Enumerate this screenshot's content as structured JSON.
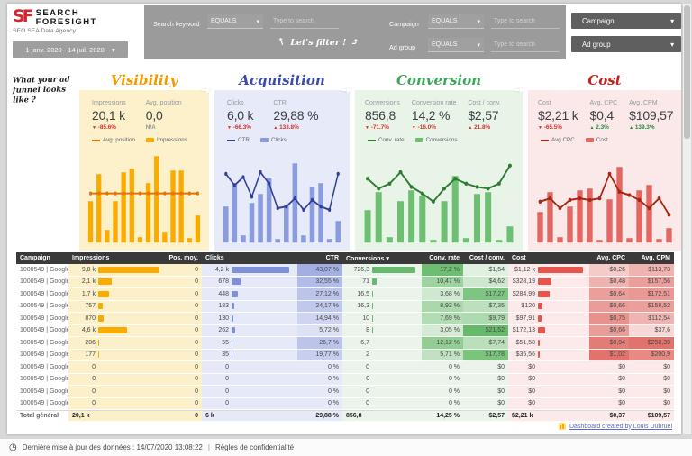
{
  "icons": {
    "caret": "▾",
    "sort": "▾",
    "up": "▲",
    "down": "▼",
    "flow_arrow": "➜",
    "arrow_up": "↑",
    "arrow_curve": "⤴",
    "clock": "◷"
  },
  "header": {
    "logo": {
      "mark": "SF",
      "name_line1": "SEARCH",
      "name_line2": "FORESIGHT",
      "tagline": "SEO SEA Data Agency"
    },
    "date_range_label": "1 janv. 2020 - 14 juil. 2020",
    "filter_annotation": "Let's filter !",
    "filters": [
      {
        "label": "Search keyword",
        "operator": "EQUALS",
        "placeholder": "Type to search"
      },
      {
        "label": "Campaign",
        "operator": "EQUALS",
        "placeholder": "Type to search"
      },
      {
        "label": "Ad group",
        "operator": "EQUALS",
        "placeholder": "Type to search"
      }
    ],
    "selector_buttons": [
      {
        "label": "Campaign"
      },
      {
        "label": "Ad group"
      }
    ]
  },
  "annotation_left": "What your ad funnel looks like ?",
  "sections": [
    {
      "id": "visibility",
      "title": "Visibility",
      "colors": {
        "title": "#f29900",
        "panel": "#fcf1cb",
        "bar": "#f9ab00",
        "line": "#e37400"
      },
      "kpis": [
        {
          "label": "Impressions",
          "value": "20,1 k",
          "delta": "-85.6%",
          "delta_dir": "down",
          "delta_color": "#d93025"
        },
        {
          "label": "Avg. position",
          "value": "0,0",
          "delta": "N/A",
          "delta_dir": "none",
          "delta_color": "#8f9499"
        }
      ],
      "legend": [
        {
          "type": "line",
          "label": "Avg. position"
        },
        {
          "type": "bar",
          "label": "Impressions"
        }
      ],
      "chart": {
        "type": "bar+line",
        "bars": [
          46,
          76,
          14,
          46,
          78,
          82,
          6,
          66,
          96,
          12,
          80,
          80,
          5,
          30
        ],
        "line": [
          50,
          50,
          50,
          50,
          50,
          50,
          50,
          50,
          50,
          50,
          50,
          50,
          50,
          50
        ]
      }
    },
    {
      "id": "acquisition",
      "title": "Acquisition",
      "colors": {
        "title": "#3b4ba8",
        "panel": "#e7eaf9",
        "bar": "#8b9cde",
        "line": "#30409b"
      },
      "kpis": [
        {
          "label": "Clicks",
          "value": "6,0 k",
          "delta": "-66.3%",
          "delta_dir": "down",
          "delta_color": "#d93025"
        },
        {
          "label": "CTR",
          "value": "29,88 %",
          "delta": "133.8%",
          "delta_dir": "up",
          "delta_color": "#d93025"
        }
      ],
      "legend": [
        {
          "type": "line",
          "label": "CTR"
        },
        {
          "type": "bar",
          "label": "Clicks"
        }
      ],
      "chart": {
        "type": "bar+line",
        "bars": [
          40,
          66,
          8,
          44,
          54,
          72,
          4,
          42,
          88,
          8,
          62,
          66,
          4,
          24
        ],
        "line": [
          74,
          60,
          70,
          46,
          76,
          62,
          32,
          34,
          44,
          30,
          42,
          34,
          30,
          74
        ]
      }
    },
    {
      "id": "conversion",
      "title": "Conversion",
      "colors": {
        "title": "#3fa45b",
        "panel": "#e9f4e9",
        "bar": "#6fbf73",
        "line": "#2e7d32"
      },
      "kpis": [
        {
          "label": "Conversions",
          "value": "856,8",
          "delta": "-71.7%",
          "delta_dir": "down",
          "delta_color": "#d93025"
        },
        {
          "label": "Conversion rate",
          "value": "14,2 %",
          "delta": "-16.0%",
          "delta_dir": "down",
          "delta_color": "#d93025"
        },
        {
          "label": "Cost / conv.",
          "value": "$2,57",
          "delta": "21.8%",
          "delta_dir": "up",
          "delta_color": "#d93025"
        }
      ],
      "legend": [
        {
          "type": "line",
          "label": "Conv. rate"
        },
        {
          "type": "bar",
          "label": "Conversions"
        }
      ],
      "chart": {
        "type": "bar+line",
        "bars": [
          36,
          56,
          6,
          46,
          58,
          52,
          3,
          46,
          74,
          5,
          54,
          56,
          3,
          18
        ],
        "line": [
          68,
          56,
          62,
          76,
          58,
          50,
          40,
          56,
          68,
          62,
          58,
          56,
          62,
          84
        ]
      }
    },
    {
      "id": "cost",
      "title": "Cost",
      "colors": {
        "title": "#c5221f",
        "panel": "#fbe9e9",
        "bar": "#e36862",
        "line": "#a52714"
      },
      "kpis": [
        {
          "label": "Cost",
          "value": "$2,21 k",
          "delta": "-65.5%",
          "delta_dir": "down",
          "delta_color": "#d93025"
        },
        {
          "label": "Avg. CPC",
          "value": "$0,4",
          "delta": "2.3%",
          "delta_dir": "up",
          "delta_color": "#1e8e3e"
        },
        {
          "label": "Avg. CPM",
          "value": "$109,57",
          "delta": "139.3%",
          "delta_dir": "up",
          "delta_color": "#1e8e3e"
        }
      ],
      "legend": [
        {
          "type": "line",
          "label": "Avg CPC"
        },
        {
          "type": "bar",
          "label": "Cost"
        }
      ],
      "chart": {
        "type": "bar+line",
        "bars": [
          34,
          56,
          6,
          40,
          58,
          60,
          3,
          48,
          84,
          5,
          58,
          64,
          4,
          16
        ],
        "line": [
          40,
          44,
          32,
          42,
          44,
          42,
          44,
          74,
          52,
          48,
          42,
          32,
          44,
          24
        ]
      }
    }
  ],
  "table": {
    "colors": {
      "impressions_bar": "#f9ab00",
      "clicks_bar": "#7d90d8",
      "conversions_bar": "#67b96b",
      "cost_bar": "#e8544c",
      "ctr_heat": "#9fabe2",
      "rate_heat": "#66bb6a",
      "costconv_heat": "#5db761",
      "cpc_heat": "#e06c65",
      "cpm_heat": "#e06c65",
      "band_yellow": "#fbf0c9",
      "band_blue": "#e6e9f7",
      "band_green": "#eaf4ea",
      "band_red": "#fbeae9",
      "band_white": "#ffffff",
      "header_bg": "#3a3a3a"
    },
    "columns": [
      {
        "label": "Campaign"
      },
      {
        "label": "Impressions"
      },
      {
        "label": "Pos. moy."
      },
      {
        "label": "Clicks"
      },
      {
        "label": "CTR"
      },
      {
        "label": "Conversions",
        "sorted": true
      },
      {
        "label": "Conv. rate"
      },
      {
        "label": "Cost / conv."
      },
      {
        "label": "Cost"
      },
      {
        "label": "Avg. CPC"
      },
      {
        "label": "Avg. CPM"
      }
    ],
    "rows": [
      {
        "campaign": "1000549 | Google Anal...",
        "impressions": "9,8 k",
        "impressions_v": 9800,
        "pos_moy": "0",
        "clicks": "4,2 k",
        "clicks_v": 4200,
        "ctr": "43,07 %",
        "ctr_v": 43.07,
        "conversions": "726,3",
        "conversions_v": 726.3,
        "conv_rate": "17,2 %",
        "conv_rate_v": 17.2,
        "cost_conv": "$1,54",
        "cost_conv_v": 1.54,
        "cost": "$1,12 k",
        "cost_v": 1120,
        "cpc": "$0,26",
        "cpc_v": 0.26,
        "cpm": "$113,73",
        "cpm_v": 113.73
      },
      {
        "campaign": "1000549 | Google Anal...",
        "impressions": "2,1 k",
        "impressions_v": 2100,
        "pos_moy": "0",
        "clicks": "678",
        "clicks_v": 678,
        "ctr": "32,55 %",
        "ctr_v": 32.55,
        "conversions": "71",
        "conversions_v": 71,
        "conv_rate": "10,47 %",
        "conv_rate_v": 10.47,
        "cost_conv": "$4,62",
        "cost_conv_v": 4.62,
        "cost": "$328,19",
        "cost_v": 328.19,
        "cpc": "$0,48",
        "cpc_v": 0.48,
        "cpm": "$157,56",
        "cpm_v": 157.56
      },
      {
        "campaign": "1000549 | Google Anal...",
        "impressions": "1,7 k",
        "impressions_v": 1700,
        "pos_moy": "0",
        "clicks": "448",
        "clicks_v": 448,
        "ctr": "27,12 %",
        "ctr_v": 27.12,
        "conversions": "16,5",
        "conversions_v": 16.5,
        "conv_rate": "3,68 %",
        "conv_rate_v": 3.68,
        "cost_conv": "$17,27",
        "cost_conv_v": 17.27,
        "cost": "$284,99",
        "cost_v": 284.99,
        "cpc": "$0,64",
        "cpc_v": 0.64,
        "cpm": "$172,51",
        "cpm_v": 172.51
      },
      {
        "campaign": "1000549 | Google Anal...",
        "impressions": "757",
        "impressions_v": 757,
        "pos_moy": "0",
        "clicks": "183",
        "clicks_v": 183,
        "ctr": "24,17 %",
        "ctr_v": 24.17,
        "conversions": "16,3",
        "conversions_v": 16.3,
        "conv_rate": "8,93 %",
        "conv_rate_v": 8.93,
        "cost_conv": "$7,35",
        "cost_conv_v": 7.35,
        "cost": "$120",
        "cost_v": 120,
        "cpc": "$0,66",
        "cpc_v": 0.66,
        "cpm": "$158,52",
        "cpm_v": 158.52
      },
      {
        "campaign": "1000549 | Google Anal...",
        "impressions": "870",
        "impressions_v": 870,
        "pos_moy": "0",
        "clicks": "130",
        "clicks_v": 130,
        "ctr": "14,94 %",
        "ctr_v": 14.94,
        "conversions": "10",
        "conversions_v": 10,
        "conv_rate": "7,69 %",
        "conv_rate_v": 7.69,
        "cost_conv": "$9,79",
        "cost_conv_v": 9.79,
        "cost": "$97,91",
        "cost_v": 97.91,
        "cpc": "$0,75",
        "cpc_v": 0.75,
        "cpm": "$112,54",
        "cpm_v": 112.54
      },
      {
        "campaign": "1000549 | Google Anal...",
        "impressions": "4,6 k",
        "impressions_v": 4600,
        "pos_moy": "0",
        "clicks": "262",
        "clicks_v": 262,
        "ctr": "5,72 %",
        "ctr_v": 5.72,
        "conversions": "8",
        "conversions_v": 8,
        "conv_rate": "3,05 %",
        "conv_rate_v": 3.05,
        "cost_conv": "$21,52",
        "cost_conv_v": 21.52,
        "cost": "$172,13",
        "cost_v": 172.13,
        "cpc": "$0,66",
        "cpc_v": 0.66,
        "cpm": "$37,6",
        "cpm_v": 37.6
      },
      {
        "campaign": "1000549 | Google Anal...",
        "impressions": "206",
        "impressions_v": 206,
        "pos_moy": "0",
        "clicks": "55",
        "clicks_v": 55,
        "ctr": "26,7 %",
        "ctr_v": 26.7,
        "conversions": "6,7",
        "conversions_v": 6.7,
        "conv_rate": "12,12 %",
        "conv_rate_v": 12.12,
        "cost_conv": "$7,74",
        "cost_conv_v": 7.74,
        "cost": "$51,58",
        "cost_v": 51.58,
        "cpc": "$0,94",
        "cpc_v": 0.94,
        "cpm": "$250,39",
        "cpm_v": 250.39
      },
      {
        "campaign": "1000549 | Google Anal...",
        "impressions": "177",
        "impressions_v": 177,
        "pos_moy": "0",
        "clicks": "35",
        "clicks_v": 35,
        "ctr": "19,77 %",
        "ctr_v": 19.77,
        "conversions": "2",
        "conversions_v": 2,
        "conv_rate": "5,71 %",
        "conv_rate_v": 5.71,
        "cost_conv": "$17,78",
        "cost_conv_v": 17.78,
        "cost": "$35,56",
        "cost_v": 35.56,
        "cpc": "$1,02",
        "cpc_v": 1.02,
        "cpm": "$200,9",
        "cpm_v": 200.9
      },
      {
        "campaign": "1000549 | Google Anal...",
        "impressions": "0",
        "impressions_v": 0,
        "pos_moy": "0",
        "clicks": "0",
        "clicks_v": 0,
        "ctr": "0 %",
        "ctr_v": 0,
        "conversions": "0",
        "conversions_v": 0,
        "conv_rate": "0 %",
        "conv_rate_v": 0,
        "cost_conv": "$0",
        "cost_conv_v": 0,
        "cost": "$0",
        "cost_v": 0,
        "cpc": "$0",
        "cpc_v": 0,
        "cpm": "$0",
        "cpm_v": 0
      },
      {
        "campaign": "1000549 | Google Anal...",
        "impressions": "0",
        "impressions_v": 0,
        "pos_moy": "0",
        "clicks": "0",
        "clicks_v": 0,
        "ctr": "0 %",
        "ctr_v": 0,
        "conversions": "0",
        "conversions_v": 0,
        "conv_rate": "0 %",
        "conv_rate_v": 0,
        "cost_conv": "$0",
        "cost_conv_v": 0,
        "cost": "$0",
        "cost_v": 0,
        "cpc": "$0",
        "cpc_v": 0,
        "cpm": "$0",
        "cpm_v": 0
      },
      {
        "campaign": "1000549 | Google Anal...",
        "impressions": "0",
        "impressions_v": 0,
        "pos_moy": "0",
        "clicks": "0",
        "clicks_v": 0,
        "ctr": "0 %",
        "ctr_v": 0,
        "conversions": "0",
        "conversions_v": 0,
        "conv_rate": "0 %",
        "conv_rate_v": 0,
        "cost_conv": "$0",
        "cost_conv_v": 0,
        "cost": "$0",
        "cost_v": 0,
        "cpc": "$0",
        "cpc_v": 0,
        "cpm": "$0",
        "cpm_v": 0
      },
      {
        "campaign": "1000549 | Google Anal...",
        "impressions": "0",
        "impressions_v": 0,
        "pos_moy": "0",
        "clicks": "0",
        "clicks_v": 0,
        "ctr": "0 %",
        "ctr_v": 0,
        "conversions": "0",
        "conversions_v": 0,
        "conv_rate": "0 %",
        "conv_rate_v": 0,
        "cost_conv": "$0",
        "cost_conv_v": 0,
        "cost": "$0",
        "cost_v": 0,
        "cpc": "$0",
        "cpc_v": 0,
        "cpm": "$0",
        "cpm_v": 0
      }
    ],
    "total": {
      "campaign": "Total général",
      "impressions": "20,1 k",
      "pos_moy": "0",
      "clicks": "6 k",
      "ctr": "29,88 %",
      "conversions": "856,8",
      "conv_rate": "14,25 %",
      "cost_conv": "$2,57",
      "cost": "$2,21 k",
      "cpc": "$0,37",
      "cpm": "$109,57"
    }
  },
  "credit_link_label": "Dashboard created by Louis Dubruel",
  "status_bar": {
    "updated_text": "Dernière mise à jour des données : 14/07/2020 13:08:22",
    "privacy_label": "Règles de confidentialité"
  }
}
